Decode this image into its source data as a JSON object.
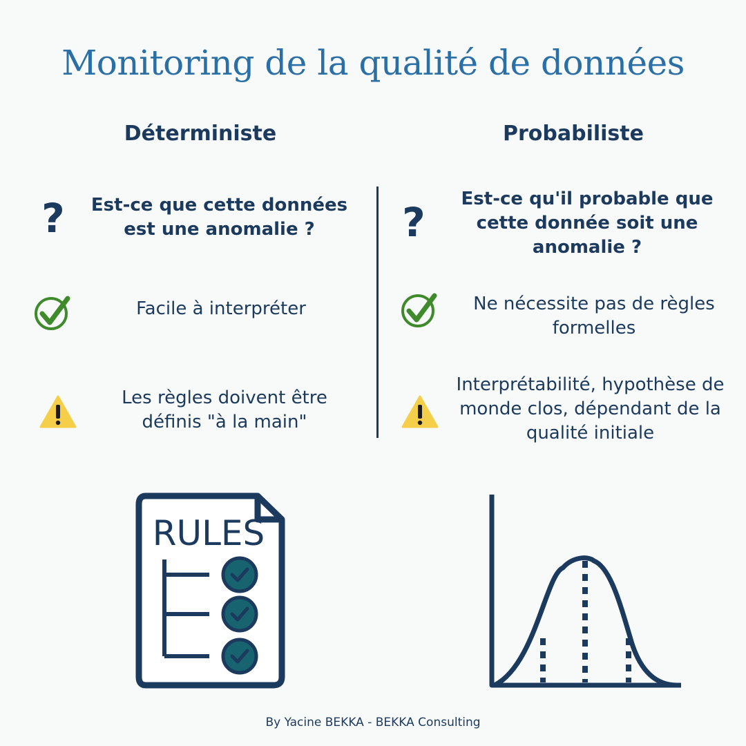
{
  "title": "Monitoring de la qualité de données",
  "left": {
    "heading": "Déterministe",
    "question": "Est-ce que cette données est une anomalie ?",
    "pro": "Facile à interpréter",
    "con": "Les règles doivent être définis \"à la main\"",
    "illustration_label": "RULES"
  },
  "right": {
    "heading": "Probabiliste",
    "question": "Est-ce qu'il probable que cette donnée soit une anomalie ?",
    "pro": "Ne nécessite pas de règles formelles",
    "con": "Interprétabilité, hypothèse de monde clos, dépendant de la qualité initiale"
  },
  "footer": "By Yacine BEKKA - BEKKA Consulting",
  "colors": {
    "title": "#2a6fa6",
    "text": "#1b3a5e",
    "check": "#3f8a2b",
    "warning": "#f6cf4a",
    "teal": "#17636f"
  },
  "icons": [
    "question-icon",
    "check-circle-icon",
    "warning-icon",
    "rules-document-icon",
    "bell-curve-icon"
  ]
}
